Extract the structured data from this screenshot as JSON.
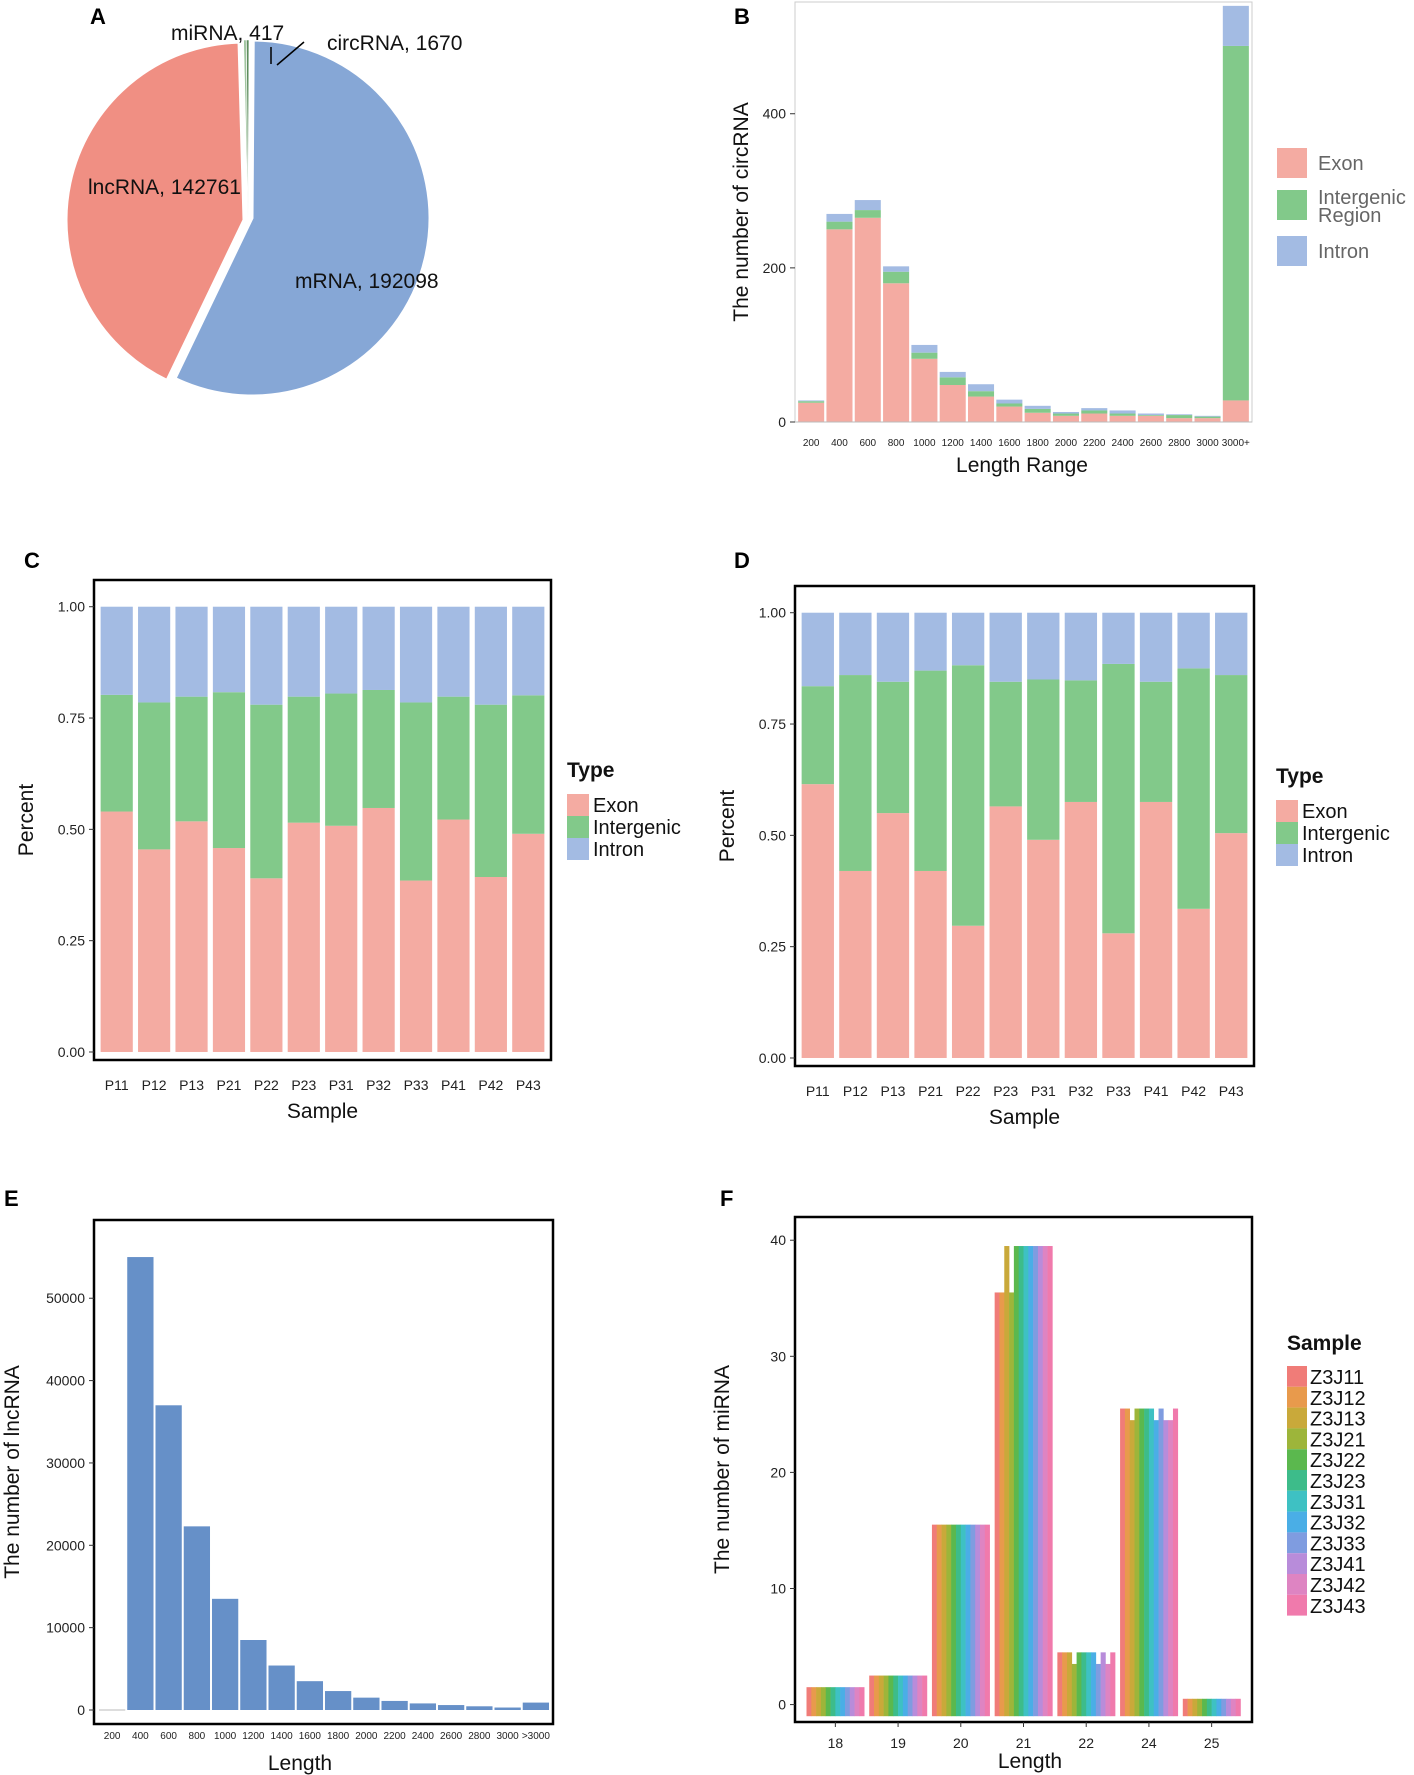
{
  "panels": {
    "A": "A",
    "B": "B",
    "C": "C",
    "D": "D",
    "E": "E",
    "F": "F"
  },
  "colors": {
    "exon": "#F4ABA2",
    "intergenic": "#82C98A",
    "intron": "#A3BBE3",
    "pie_lnc": "#F08F83",
    "pie_mrna": "#86A7D6",
    "pie_mirna": "#A0C5A0",
    "pie_circ": "#5E8E5E",
    "lnc_bar": "#6690C8"
  },
  "chart_data": [
    {
      "id": "A",
      "type": "pie",
      "labels": [
        "mRNA, 192098",
        "lncRNA, 142761",
        "miRNA, 417",
        "circRNA, 1670"
      ],
      "values": [
        192098,
        142761,
        417,
        1670
      ]
    },
    {
      "id": "B",
      "type": "bar",
      "stacked": true,
      "categories": [
        "200",
        "400",
        "600",
        "800",
        "1000",
        "1200",
        "1400",
        "1600",
        "1800",
        "2000",
        "2200",
        "2400",
        "2600",
        "2800",
        "3000",
        "3000+"
      ],
      "series": [
        {
          "name": "Exon",
          "values": [
            25,
            250,
            265,
            180,
            82,
            48,
            33,
            20,
            12,
            8,
            11,
            8,
            8,
            5,
            5,
            28
          ]
        },
        {
          "name": "Intergenic Region",
          "values": [
            2,
            10,
            10,
            15,
            8,
            10,
            7,
            4,
            5,
            3,
            4,
            3,
            1,
            4,
            2,
            460
          ]
        },
        {
          "name": "Intron",
          "values": [
            1,
            10,
            13,
            7,
            10,
            7,
            9,
            5,
            4,
            2,
            3,
            4,
            2,
            1,
            1,
            52
          ]
        }
      ],
      "title": "",
      "xlabel": "Length Range",
      "ylabel": "The number of circRNA",
      "yticks": [
        0,
        200,
        400
      ],
      "ylim": [
        0,
        545
      ],
      "legend_labels": [
        "Exon",
        "Intergenic",
        "Region",
        "Intron"
      ]
    },
    {
      "id": "C",
      "type": "bar",
      "stacked": true,
      "categories": [
        "P11",
        "P12",
        "P13",
        "P21",
        "P22",
        "P23",
        "P31",
        "P32",
        "P33",
        "P41",
        "P42",
        "P43"
      ],
      "series": [
        {
          "name": "Exon",
          "values": [
            0.54,
            0.455,
            0.518,
            0.458,
            0.39,
            0.515,
            0.508,
            0.548,
            0.385,
            0.522,
            0.393,
            0.49
          ]
        },
        {
          "name": "Intergenic",
          "values": [
            0.262,
            0.33,
            0.28,
            0.35,
            0.39,
            0.283,
            0.297,
            0.265,
            0.4,
            0.276,
            0.387,
            0.311
          ]
        },
        {
          "name": "Intron",
          "values": [
            0.198,
            0.215,
            0.202,
            0.192,
            0.22,
            0.202,
            0.195,
            0.187,
            0.215,
            0.202,
            0.22,
            0.199
          ]
        }
      ],
      "xlabel": "Sample",
      "ylabel": "Percent",
      "yticks": [
        "0.00",
        "0.25",
        "0.50",
        "0.75",
        "1.00"
      ],
      "ylim": [
        0,
        1
      ],
      "legend_title": "Type",
      "legend_labels": [
        "Exon",
        "Intergenic",
        "Intron"
      ]
    },
    {
      "id": "D",
      "type": "bar",
      "stacked": true,
      "categories": [
        "P11",
        "P12",
        "P13",
        "P21",
        "P22",
        "P23",
        "P31",
        "P32",
        "P33",
        "P41",
        "P42",
        "P43"
      ],
      "series": [
        {
          "name": "Exon",
          "values": [
            0.615,
            0.42,
            0.55,
            0.42,
            0.297,
            0.565,
            0.49,
            0.575,
            0.28,
            0.575,
            0.335,
            0.505
          ]
        },
        {
          "name": "Intergenic",
          "values": [
            0.22,
            0.44,
            0.295,
            0.45,
            0.585,
            0.28,
            0.36,
            0.273,
            0.605,
            0.27,
            0.54,
            0.355
          ]
        },
        {
          "name": "Intron",
          "values": [
            0.165,
            0.14,
            0.155,
            0.13,
            0.118,
            0.155,
            0.15,
            0.152,
            0.115,
            0.155,
            0.125,
            0.14
          ]
        }
      ],
      "xlabel": "Sample",
      "ylabel": "Percent",
      "yticks": [
        "0.00",
        "0.25",
        "0.50",
        "0.75",
        "1.00"
      ],
      "ylim": [
        0,
        1
      ],
      "legend_title": "Type",
      "legend_labels": [
        "Exon",
        "Intergenic",
        "Intron"
      ]
    },
    {
      "id": "E",
      "type": "bar",
      "categories": [
        "200",
        "400",
        "600",
        "800",
        "1000",
        "1200",
        "1400",
        "1600",
        "1800",
        "2000",
        "2200",
        "2400",
        "2600",
        "2800",
        "3000",
        ">3000"
      ],
      "values": [
        0,
        55000,
        37000,
        22300,
        13500,
        8500,
        5400,
        3500,
        2300,
        1500,
        1100,
        800,
        600,
        450,
        300,
        900
      ],
      "xlabel": "Length",
      "ylabel": "The number of lncRNA",
      "yticks": [
        0,
        10000,
        20000,
        30000,
        40000,
        50000
      ],
      "ylim": [
        0,
        59500
      ]
    },
    {
      "id": "F",
      "type": "bar",
      "categories": [
        "18",
        "19",
        "20",
        "21",
        "22",
        "24",
        "25"
      ],
      "series_names": [
        "Z3J11",
        "Z3J12",
        "Z3J13",
        "Z3J21",
        "Z3J22",
        "Z3J23",
        "Z3J31",
        "Z3J32",
        "Z3J33",
        "Z3J41",
        "Z3J42",
        "Z3J43"
      ],
      "series_colors": [
        "#F07C78",
        "#E89A4C",
        "#C9A93A",
        "#9DB53A",
        "#5BB84E",
        "#3DBC8A",
        "#3EC1C3",
        "#4AAEE6",
        "#7F9CE0",
        "#B88CDA",
        "#DE84C2",
        "#F07AAC"
      ],
      "values": [
        [
          2,
          2,
          2,
          2,
          2,
          2,
          2,
          2,
          2,
          2,
          2,
          2
        ],
        [
          3,
          3,
          3,
          3,
          3,
          3,
          3,
          3,
          3,
          3,
          3,
          3
        ],
        [
          16,
          16,
          16,
          16,
          16,
          16,
          16,
          16,
          16,
          16,
          16,
          16
        ],
        [
          36,
          36,
          40,
          36,
          40,
          40,
          40,
          40,
          40,
          40,
          40,
          40
        ],
        [
          5,
          5,
          5,
          4,
          5,
          5,
          5,
          5,
          4,
          5,
          4,
          5
        ],
        [
          26,
          26,
          25,
          26,
          26,
          26,
          26,
          25,
          26,
          25,
          25,
          26
        ],
        [
          1,
          1,
          1,
          1,
          1,
          1,
          1,
          1,
          1,
          1,
          1,
          1
        ]
      ],
      "xlabel": "Length",
      "ylabel": "The number of miRNA",
      "yticks": [
        0,
        10,
        20,
        30,
        40
      ],
      "ylim": [
        -1.5,
        42
      ],
      "legend_title": "Sample"
    }
  ]
}
